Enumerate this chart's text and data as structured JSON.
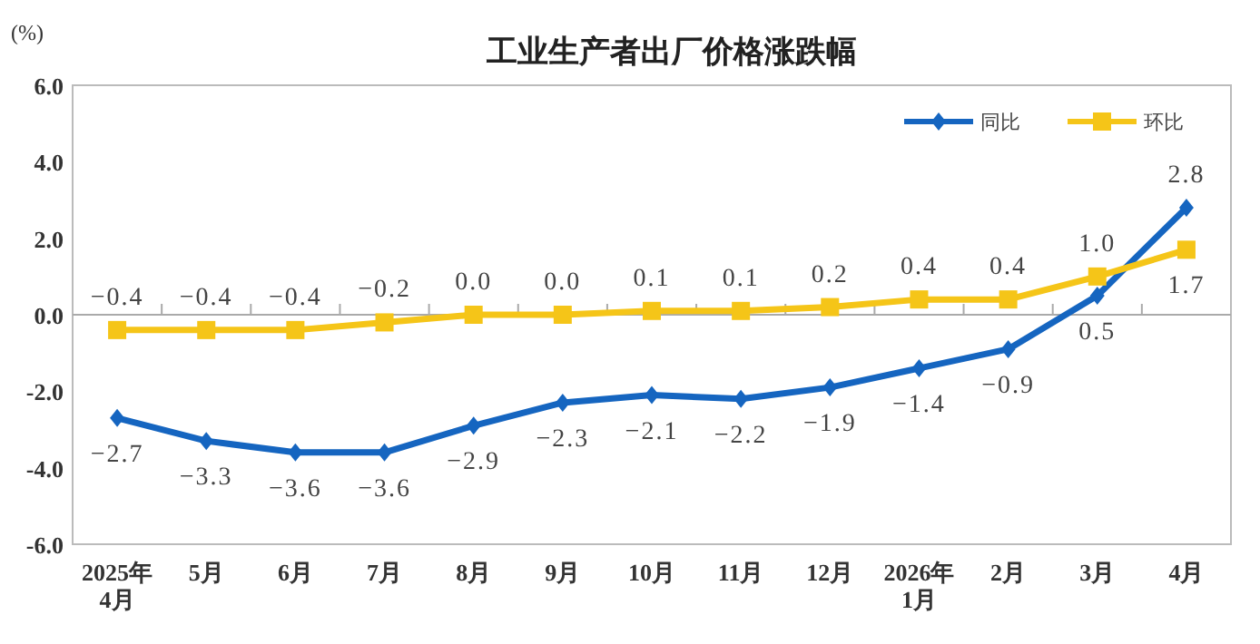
{
  "chart_data": {
    "type": "line",
    "title": "工业生产者出厂价格涨跌幅",
    "ylabel": "(%)",
    "categories": [
      "2025年\n4月",
      "5月",
      "6月",
      "7月",
      "8月",
      "9月",
      "10月",
      "11月",
      "12月",
      "2026年\n1月",
      "2月",
      "3月",
      "4月"
    ],
    "series": [
      {
        "name": "同比",
        "color": "#1565c0",
        "marker": "diamond",
        "values": [
          -2.7,
          -3.3,
          -3.6,
          -3.6,
          -2.9,
          -2.3,
          -2.1,
          -2.2,
          -1.9,
          -1.4,
          -0.9,
          0.5,
          2.8
        ],
        "value_labels": [
          "−2.7",
          "−3.3",
          "−3.6",
          "−3.6",
          "−2.9",
          "−2.3",
          "−2.1",
          "−2.2",
          "−1.9",
          "−1.4",
          "−0.9",
          "0.5",
          "2.8"
        ]
      },
      {
        "name": "环比",
        "color": "#f5c518",
        "marker": "square",
        "values": [
          -0.4,
          -0.4,
          -0.4,
          -0.2,
          0.0,
          0.0,
          0.1,
          0.1,
          0.2,
          0.4,
          0.4,
          1.0,
          1.7
        ],
        "value_labels": [
          "−0.4",
          "−0.4",
          "−0.4",
          "−0.2",
          "0.0",
          "0.0",
          "0.1",
          "0.1",
          "0.2",
          "0.4",
          "0.4",
          "1.0",
          "1.7"
        ]
      }
    ],
    "ylim": [
      -6,
      6
    ],
    "yticks": [
      {
        "value": 6,
        "label": "6.0"
      },
      {
        "value": 4,
        "label": "4.0"
      },
      {
        "value": 2,
        "label": "2.0"
      },
      {
        "value": 0,
        "label": "0.0"
      },
      {
        "value": -2,
        "label": "-2.0"
      },
      {
        "value": -4,
        "label": "-4.0"
      },
      {
        "value": -6,
        "label": "-6.0"
      }
    ],
    "ref_lines": [
      {
        "axis": "y",
        "value": 0,
        "color": "#aaaaaa",
        "line_style": "solid"
      }
    ],
    "legend": "top right",
    "line_style": "solid"
  }
}
